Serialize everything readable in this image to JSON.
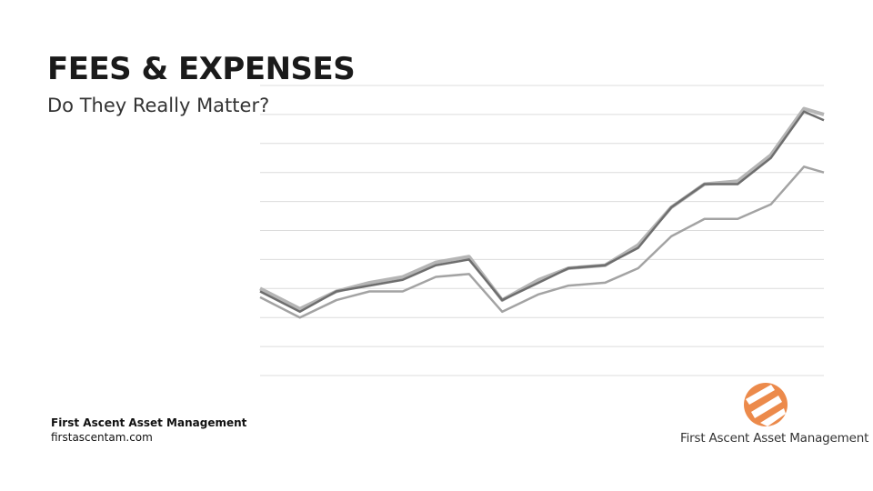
{
  "title": "FEES & EXPENSES",
  "subtitle": "Do They Really Matter?",
  "footer": {
    "company": "First  Ascent Asset Management",
    "website": "firstascentam.com"
  },
  "logo": {
    "text": "First Ascent Asset Management"
  },
  "chart_data": {
    "type": "line",
    "x": [
      0,
      1.2,
      2.3,
      3.3,
      4.3,
      5.3,
      6.3,
      7.3,
      8.4,
      9.3,
      10.4,
      11.4,
      12.4,
      13.4,
      14.4,
      15.4,
      16.4,
      17
    ],
    "xlim": [
      0,
      17
    ],
    "ylim": [
      0,
      10
    ],
    "yticks": [
      0,
      1,
      2,
      3,
      4,
      5,
      6,
      7,
      8,
      9,
      10
    ],
    "grid": true,
    "series": [
      {
        "color": "#b5b5b5",
        "values": [
          3.0,
          2.3,
          2.9,
          3.2,
          3.4,
          3.9,
          4.1,
          2.6,
          3.3,
          3.7,
          3.8,
          4.5,
          5.8,
          6.6,
          6.7,
          7.6,
          9.2,
          9.0
        ]
      },
      {
        "color": "#6e6e6e",
        "values": [
          2.9,
          2.2,
          2.9,
          3.1,
          3.3,
          3.8,
          4.0,
          2.6,
          3.2,
          3.7,
          3.8,
          4.4,
          5.8,
          6.6,
          6.6,
          7.5,
          9.1,
          8.8
        ]
      },
      {
        "color": "#a3a3a3",
        "values": [
          2.7,
          2.0,
          2.6,
          2.9,
          2.9,
          3.4,
          3.5,
          2.2,
          2.8,
          3.1,
          3.2,
          3.7,
          4.8,
          5.4,
          5.4,
          5.9,
          7.2,
          7.0
        ]
      }
    ]
  }
}
